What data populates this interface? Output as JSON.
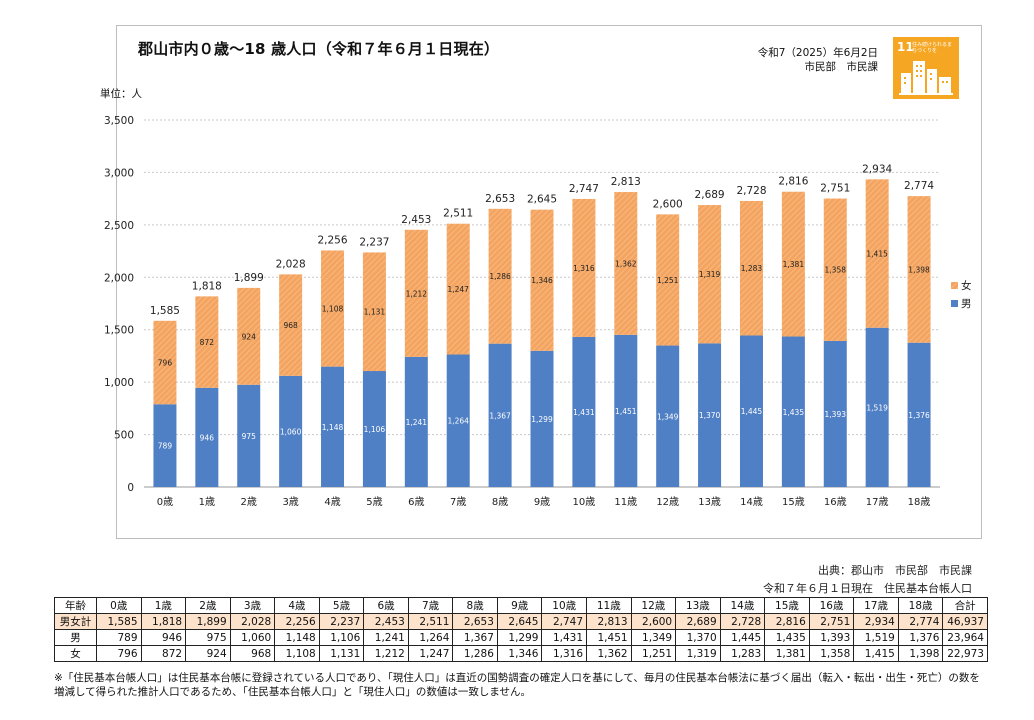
{
  "page": {
    "title": "郡山市内０歳～18 歳人口（令和７年６月１日現在）",
    "date_line": "令和7（2025）年6月2日",
    "dept_line": "市民部　市民課",
    "sdg": {
      "number": "11",
      "text": "住み続けられるまちづくりを",
      "color": "#f5a623"
    }
  },
  "chart_data": {
    "type": "bar",
    "stacked": true,
    "unit_label": "単位：人",
    "categories": [
      "0歳",
      "1歳",
      "2歳",
      "3歳",
      "4歳",
      "5歳",
      "6歳",
      "7歳",
      "8歳",
      "9歳",
      "10歳",
      "11歳",
      "12歳",
      "13歳",
      "14歳",
      "15歳",
      "16歳",
      "17歳",
      "18歳"
    ],
    "series": [
      {
        "name": "男",
        "color": "#4f7fc4",
        "values": [
          789,
          946,
          975,
          1060,
          1148,
          1106,
          1241,
          1264,
          1367,
          1299,
          1431,
          1451,
          1349,
          1370,
          1445,
          1435,
          1393,
          1519,
          1376
        ]
      },
      {
        "name": "女",
        "color": "#f4a460",
        "values": [
          796,
          872,
          924,
          968,
          1108,
          1131,
          1212,
          1247,
          1286,
          1346,
          1316,
          1362,
          1251,
          1319,
          1283,
          1381,
          1358,
          1415,
          1398
        ]
      }
    ],
    "totals": [
      1585,
      1818,
      1899,
      2028,
      2256,
      2237,
      2453,
      2511,
      2653,
      2645,
      2747,
      2813,
      2600,
      2689,
      2728,
      2816,
      2751,
      2934,
      2774
    ],
    "ylim": [
      0,
      3500
    ],
    "yticks": [
      0,
      500,
      1000,
      1500,
      2000,
      2500,
      3000,
      3500
    ],
    "legend": [
      "女",
      "男"
    ],
    "legend_position": "right"
  },
  "source": {
    "line1": "出典：郡山市　市民部　市民課",
    "line2": "令和７年６月１日現在　住民基本台帳人口"
  },
  "table": {
    "header": [
      "年齢",
      "0歳",
      "1歳",
      "2歳",
      "3歳",
      "4歳",
      "5歳",
      "6歳",
      "7歳",
      "8歳",
      "9歳",
      "10歳",
      "11歳",
      "12歳",
      "13歳",
      "14歳",
      "15歳",
      "16歳",
      "17歳",
      "18歳",
      "合計"
    ],
    "rows": [
      [
        "男女計",
        "1,585",
        "1,818",
        "1,899",
        "2,028",
        "2,256",
        "2,237",
        "2,453",
        "2,511",
        "2,653",
        "2,645",
        "2,747",
        "2,813",
        "2,600",
        "2,689",
        "2,728",
        "2,816",
        "2,751",
        "2,934",
        "2,774",
        "46,937"
      ],
      [
        "男",
        "789",
        "946",
        "975",
        "1,060",
        "1,148",
        "1,106",
        "1,241",
        "1,264",
        "1,367",
        "1,299",
        "1,431",
        "1,451",
        "1,349",
        "1,370",
        "1,445",
        "1,435",
        "1,393",
        "1,519",
        "1,376",
        "23,964"
      ],
      [
        "女",
        "796",
        "872",
        "924",
        "968",
        "1,108",
        "1,131",
        "1,212",
        "1,247",
        "1,286",
        "1,346",
        "1,316",
        "1,362",
        "1,251",
        "1,319",
        "1,283",
        "1,381",
        "1,358",
        "1,415",
        "1,398",
        "22,973"
      ]
    ]
  },
  "note": "※「住民基本台帳人口」は住民基本台帳に登録されている人口であり、「現住人口」は直近の国勢調査の確定人口を基にして、毎月の住民基本台帳法に基づく届出（転入・転出・出生・死亡）の数を増減して得られた推計人口であるため、「住民基本台帳人口」と「現住人口」の数値は一致しません。"
}
